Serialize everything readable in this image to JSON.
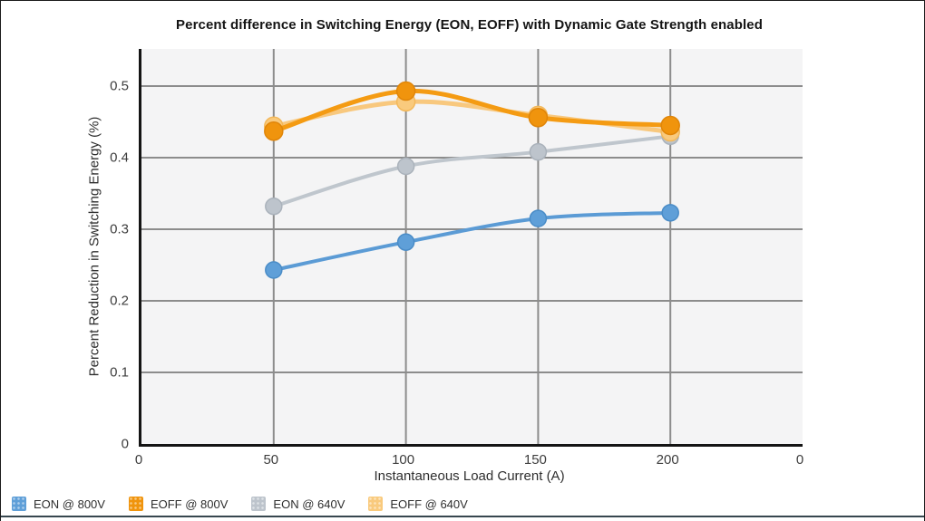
{
  "chart_data": {
    "type": "line",
    "title": "Percent difference in Switching Energy (EON, EOFF) with Dynamic Gate Strength enabled",
    "xlabel": "Instantaneous Load Current (A)",
    "ylabel": "Percent Reduction in Switching Energy (%)",
    "x": [
      50,
      100,
      150,
      200
    ],
    "x_tick_labels": [
      "0",
      "50",
      "100",
      "150",
      "200",
      "0"
    ],
    "y_tick_labels": [
      "0",
      "0.1",
      "0.2",
      "0.3",
      "0.4",
      "0.5"
    ],
    "y_ticks": [
      0,
      0.1,
      0.2,
      0.3,
      0.4,
      0.5
    ],
    "ylim": [
      0,
      0.552
    ],
    "grid": true,
    "legend_position": "bottom-left",
    "series": [
      {
        "name": "EON @ 800V",
        "values": [
          0.243,
          0.282,
          0.315,
          0.323
        ],
        "color": "#5b9bd5",
        "marker_fill": "#5f9fd8",
        "marker_stroke": "#4a8cc7",
        "line_width": 4,
        "marker_radius": 9
      },
      {
        "name": "EOFF @ 800V",
        "values": [
          0.437,
          0.493,
          0.456,
          0.445
        ],
        "color": "#f49b13",
        "marker_fill": "#f0940d",
        "marker_stroke": "#e08508",
        "line_width": 5,
        "marker_radius": 10
      },
      {
        "name": "EON @ 640V",
        "values": [
          0.332,
          0.388,
          0.408,
          0.43
        ],
        "color": "#bfc6cd",
        "marker_fill": "#bdc4cc",
        "marker_stroke": "#aab2bb",
        "line_width": 4,
        "marker_radius": 9
      },
      {
        "name": "EOFF @ 640V",
        "values": [
          0.444,
          0.478,
          0.459,
          0.436
        ],
        "color": "#f8c87e",
        "marker_fill": "#f9ca7d",
        "marker_stroke": "#f3b85a",
        "line_width": 5,
        "marker_radius": 10
      }
    ],
    "grid_color": "#8c8c8c",
    "plot_bg_color": "#f4f4f5",
    "axis_color": "#141414"
  }
}
